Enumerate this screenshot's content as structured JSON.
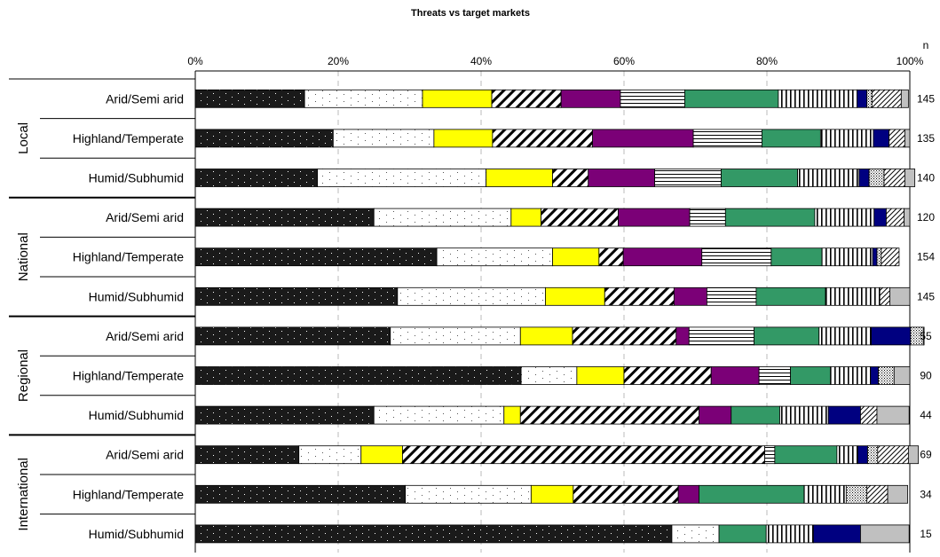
{
  "chart_data": {
    "type": "bar",
    "stacked": "percent",
    "title": "Threats vs target markets",
    "n_header": "n",
    "x_ticks": [
      "0%",
      "20%",
      "40%",
      "60%",
      "80%",
      "100%"
    ],
    "xlim": [
      0,
      100
    ],
    "grid": "vertical dashed",
    "legend": "none",
    "groups": [
      "Local",
      "National",
      "Regional",
      "International"
    ],
    "categories": [
      {
        "group": "Local",
        "label": "Arid/Semi arid",
        "n": "145"
      },
      {
        "group": "Local",
        "label": "Highland/Temperate",
        "n": "135"
      },
      {
        "group": "Local",
        "label": "Humid/Subhumid",
        "n": "140"
      },
      {
        "group": "National",
        "label": "Arid/Semi arid",
        "n": "120"
      },
      {
        "group": "National",
        "label": "Highland/Temperate",
        "n": "154"
      },
      {
        "group": "National",
        "label": "Humid/Subhumid",
        "n": "145"
      },
      {
        "group": "Regional",
        "label": "Arid/Semi arid",
        "n": "55"
      },
      {
        "group": "Regional",
        "label": "Highland/Temperate",
        "n": "90"
      },
      {
        "group": "Regional",
        "label": "Humid/Subhumid",
        "n": "44"
      },
      {
        "group": "International",
        "label": "Arid/Semi arid",
        "n": "69"
      },
      {
        "group": "International",
        "label": "Highland/Temperate",
        "n": "34"
      },
      {
        "group": "International",
        "label": "Humid/Subhumid",
        "n": "15"
      }
    ],
    "series": [
      {
        "pattern": "dark-dots",
        "color": "#1a1a1a",
        "values": [
          15.3,
          19.3,
          17.1,
          25.0,
          33.8,
          28.3,
          27.3,
          45.6,
          25.0,
          14.5,
          29.4,
          66.7
        ]
      },
      {
        "pattern": "light-dots",
        "color": "#ffffff",
        "values": [
          16.5,
          14.1,
          23.6,
          19.2,
          16.2,
          20.7,
          18.2,
          7.8,
          18.2,
          8.7,
          17.6,
          6.6
        ]
      },
      {
        "color": "#ffff00",
        "values": [
          9.7,
          8.2,
          9.3,
          4.2,
          6.5,
          8.3,
          7.3,
          6.6,
          2.3,
          5.8,
          5.9,
          0
        ]
      },
      {
        "pattern": "wide-diagonal",
        "color": "#ffffff",
        "values": [
          9.7,
          14.0,
          5.0,
          10.8,
          3.4,
          9.7,
          14.5,
          12.2,
          25.0,
          50.7,
          14.7,
          0
        ]
      },
      {
        "color": "#7b0077",
        "values": [
          8.3,
          14.1,
          9.3,
          10.0,
          11.0,
          4.6,
          1.8,
          6.7,
          4.5,
          0,
          2.9,
          0
        ]
      },
      {
        "pattern": "horizontal-lines",
        "color": "#ffffff",
        "values": [
          9.0,
          9.6,
          9.3,
          5.0,
          9.7,
          6.9,
          9.1,
          4.4,
          0,
          1.4,
          0,
          0
        ]
      },
      {
        "color": "#339966",
        "values": [
          13.1,
          8.2,
          10.7,
          12.5,
          7.1,
          9.7,
          9.1,
          5.6,
          6.8,
          8.7,
          14.7,
          6.6
        ]
      },
      {
        "pattern": "vertical-lines",
        "color": "#ffffff",
        "values": [
          11.0,
          7.4,
          8.6,
          8.3,
          7.1,
          7.6,
          7.3,
          5.6,
          6.8,
          2.9,
          5.9,
          6.6
        ]
      },
      {
        "color": "#000080",
        "values": [
          1.4,
          2.2,
          1.4,
          1.7,
          0.6,
          0,
          5.5,
          1.1,
          4.5,
          1.4,
          0,
          6.6
        ]
      },
      {
        "pattern": "fine-dots",
        "color": "#ffffff",
        "values": [
          0.7,
          0,
          2.1,
          0,
          0.6,
          0,
          1.8,
          2.2,
          0,
          1.4,
          2.9,
          0
        ]
      },
      {
        "pattern": "narrow-diagonal",
        "color": "#ffffff",
        "values": [
          4.1,
          2.2,
          2.9,
          2.5,
          2.5,
          1.4,
          0,
          0,
          2.3,
          4.3,
          2.9,
          0
        ]
      },
      {
        "color": "#c0c0c0",
        "values": [
          1.0,
          0.7,
          1.4,
          0.8,
          0,
          2.8,
          0.1,
          2.2,
          4.5,
          1.4,
          2.8,
          6.8
        ]
      }
    ]
  }
}
